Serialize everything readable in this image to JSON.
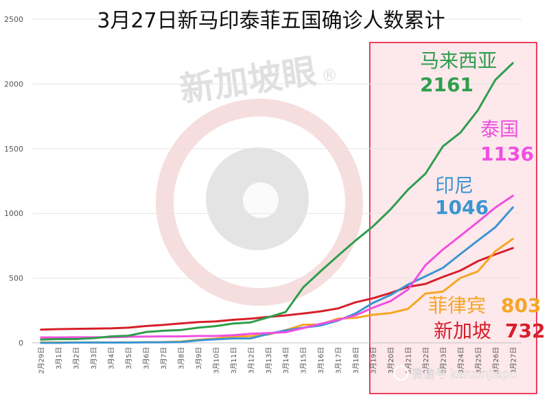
{
  "chart_data": {
    "type": "line",
    "title": "3月27日新马印泰菲五国确诊人数累计",
    "xlabel": "",
    "ylabel": "",
    "ylim": [
      0,
      2500
    ],
    "yticks": [
      0,
      500,
      1000,
      1500,
      2000,
      2500
    ],
    "grid": true,
    "legend": "inline labels at line ends",
    "categories": [
      "2月29日",
      "3月1日",
      "3月2日",
      "3月3日",
      "3月4日",
      "3月5日",
      "3月6日",
      "3月7日",
      "3月8日",
      "3月9日",
      "3月10日",
      "3月11日",
      "3月12日",
      "3月13日",
      "3月14日",
      "3月15日",
      "3月16日",
      "3月17日",
      "3月18日",
      "3月19日",
      "3月20日",
      "3月21日",
      "3月22日",
      "3月23日",
      "3月24日",
      "3月25日",
      "3月26日",
      "3月27日"
    ],
    "highlight": {
      "from": "3月19日",
      "to": "3月27日",
      "color": "#e8002d"
    },
    "series": [
      {
        "name": "马来西亚",
        "end_label": "2161",
        "color": "#2e9e4c",
        "values": [
          25,
          29,
          29,
          36,
          50,
          55,
          83,
          93,
          99,
          117,
          129,
          149,
          158,
          197,
          238,
          428,
          553,
          673,
          790,
          900,
          1030,
          1183,
          1306,
          1518,
          1624,
          1796,
          2031,
          2161
        ]
      },
      {
        "name": "泰国",
        "end_label": "1136",
        "color": "#f04fe0",
        "values": [
          42,
          42,
          43,
          43,
          43,
          47,
          48,
          50,
          50,
          53,
          53,
          59,
          70,
          75,
          82,
          114,
          147,
          177,
          212,
          272,
          322,
          411,
          599,
          721,
          827,
          934,
          1045,
          1136
        ]
      },
      {
        "name": "印尼",
        "end_label": "1046",
        "color": "#3a95d2",
        "values": [
          0,
          0,
          2,
          2,
          2,
          2,
          4,
          4,
          6,
          19,
          27,
          34,
          34,
          69,
          96,
          117,
          134,
          172,
          227,
          309,
          369,
          450,
          514,
          579,
          686,
          790,
          893,
          1046
        ]
      },
      {
        "name": "菲律宾",
        "end_label": "803",
        "color": "#f5a623",
        "values": [
          3,
          3,
          3,
          3,
          3,
          3,
          5,
          6,
          10,
          24,
          33,
          49,
          52,
          64,
          98,
          140,
          142,
          187,
          193,
          217,
          230,
          262,
          380,
          396,
          501,
          552,
          707,
          803
        ]
      },
      {
        "name": "新加坡",
        "end_label": "732",
        "color": "#d61f2a",
        "values": [
          102,
          106,
          108,
          110,
          112,
          117,
          130,
          138,
          150,
          160,
          166,
          178,
          187,
          200,
          212,
          226,
          243,
          266,
          313,
          345,
          385,
          432,
          455,
          509,
          558,
          631,
          683,
          732
        ]
      }
    ]
  },
  "watermark": {
    "brand": "新加坡眼",
    "registered": "®",
    "wechat_prefix": "微信号",
    "wechat_id": "kanxinjiapo",
    "colors": {
      "logo_ring": "#f3d2d2",
      "logo_core": "#dcdcdc",
      "brand_text": "#e2e2e2"
    }
  }
}
